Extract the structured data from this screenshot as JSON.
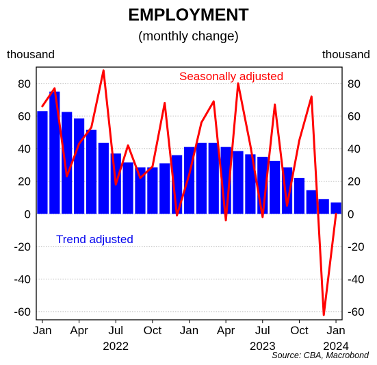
{
  "chart_data": {
    "type": "bar",
    "title": "EMPLOYMENT",
    "subtitle": "(monthly change)",
    "ylabel_left": "thousand",
    "ylabel_right": "thousand",
    "source": "Source: CBA, Macrobond",
    "ylim": [
      -65,
      90
    ],
    "yticks": [
      -60,
      -40,
      -20,
      0,
      20,
      40,
      60,
      80
    ],
    "grid": true,
    "x": [
      "2022-01",
      "2022-02",
      "2022-03",
      "2022-04",
      "2022-05",
      "2022-06",
      "2022-07",
      "2022-08",
      "2022-09",
      "2022-10",
      "2022-11",
      "2022-12",
      "2023-01",
      "2023-02",
      "2023-03",
      "2023-04",
      "2023-05",
      "2023-06",
      "2023-07",
      "2023-08",
      "2023-09",
      "2023-10",
      "2023-11",
      "2023-12",
      "2024-01"
    ],
    "xtick_labels": [
      {
        "at": "2022-01",
        "label": "Jan"
      },
      {
        "at": "2022-04",
        "label": "Apr"
      },
      {
        "at": "2022-07",
        "label": "Jul"
      },
      {
        "at": "2022-10",
        "label": "Oct"
      },
      {
        "at": "2023-01",
        "label": "Jan"
      },
      {
        "at": "2023-04",
        "label": "Apr"
      },
      {
        "at": "2023-07",
        "label": "Jul"
      },
      {
        "at": "2023-10",
        "label": "Oct"
      },
      {
        "at": "2024-01",
        "label": "Jan"
      }
    ],
    "year_labels": [
      {
        "at": "2022-07",
        "label": "2022"
      },
      {
        "at": "2023-07",
        "label": "2023"
      },
      {
        "at": "2024-01",
        "label": "2024"
      }
    ],
    "series": [
      {
        "name": "Trend adjusted",
        "type": "bar",
        "color": "#0000ff",
        "values": [
          63,
          75,
          62.5,
          58.5,
          51.5,
          43.5,
          37,
          31.5,
          28.5,
          28.5,
          31,
          36,
          41,
          43.5,
          43.5,
          41,
          38.5,
          36.5,
          35,
          32.5,
          28.5,
          22,
          14.5,
          9,
          7
        ]
      },
      {
        "name": "Seasonally adjusted",
        "type": "line",
        "color": "#ff0000",
        "values": [
          66,
          77,
          23,
          43,
          53,
          88,
          18,
          42,
          22,
          29,
          68,
          -1,
          24,
          56,
          69,
          -4,
          80,
          42,
          -2,
          67,
          5,
          45,
          72,
          -62,
          0
        ]
      }
    ],
    "annotations": [
      {
        "text": "Seasonally adjusted",
        "color": "#ff0000"
      },
      {
        "text": "Trend adjusted",
        "color": "#0000ee"
      }
    ]
  }
}
